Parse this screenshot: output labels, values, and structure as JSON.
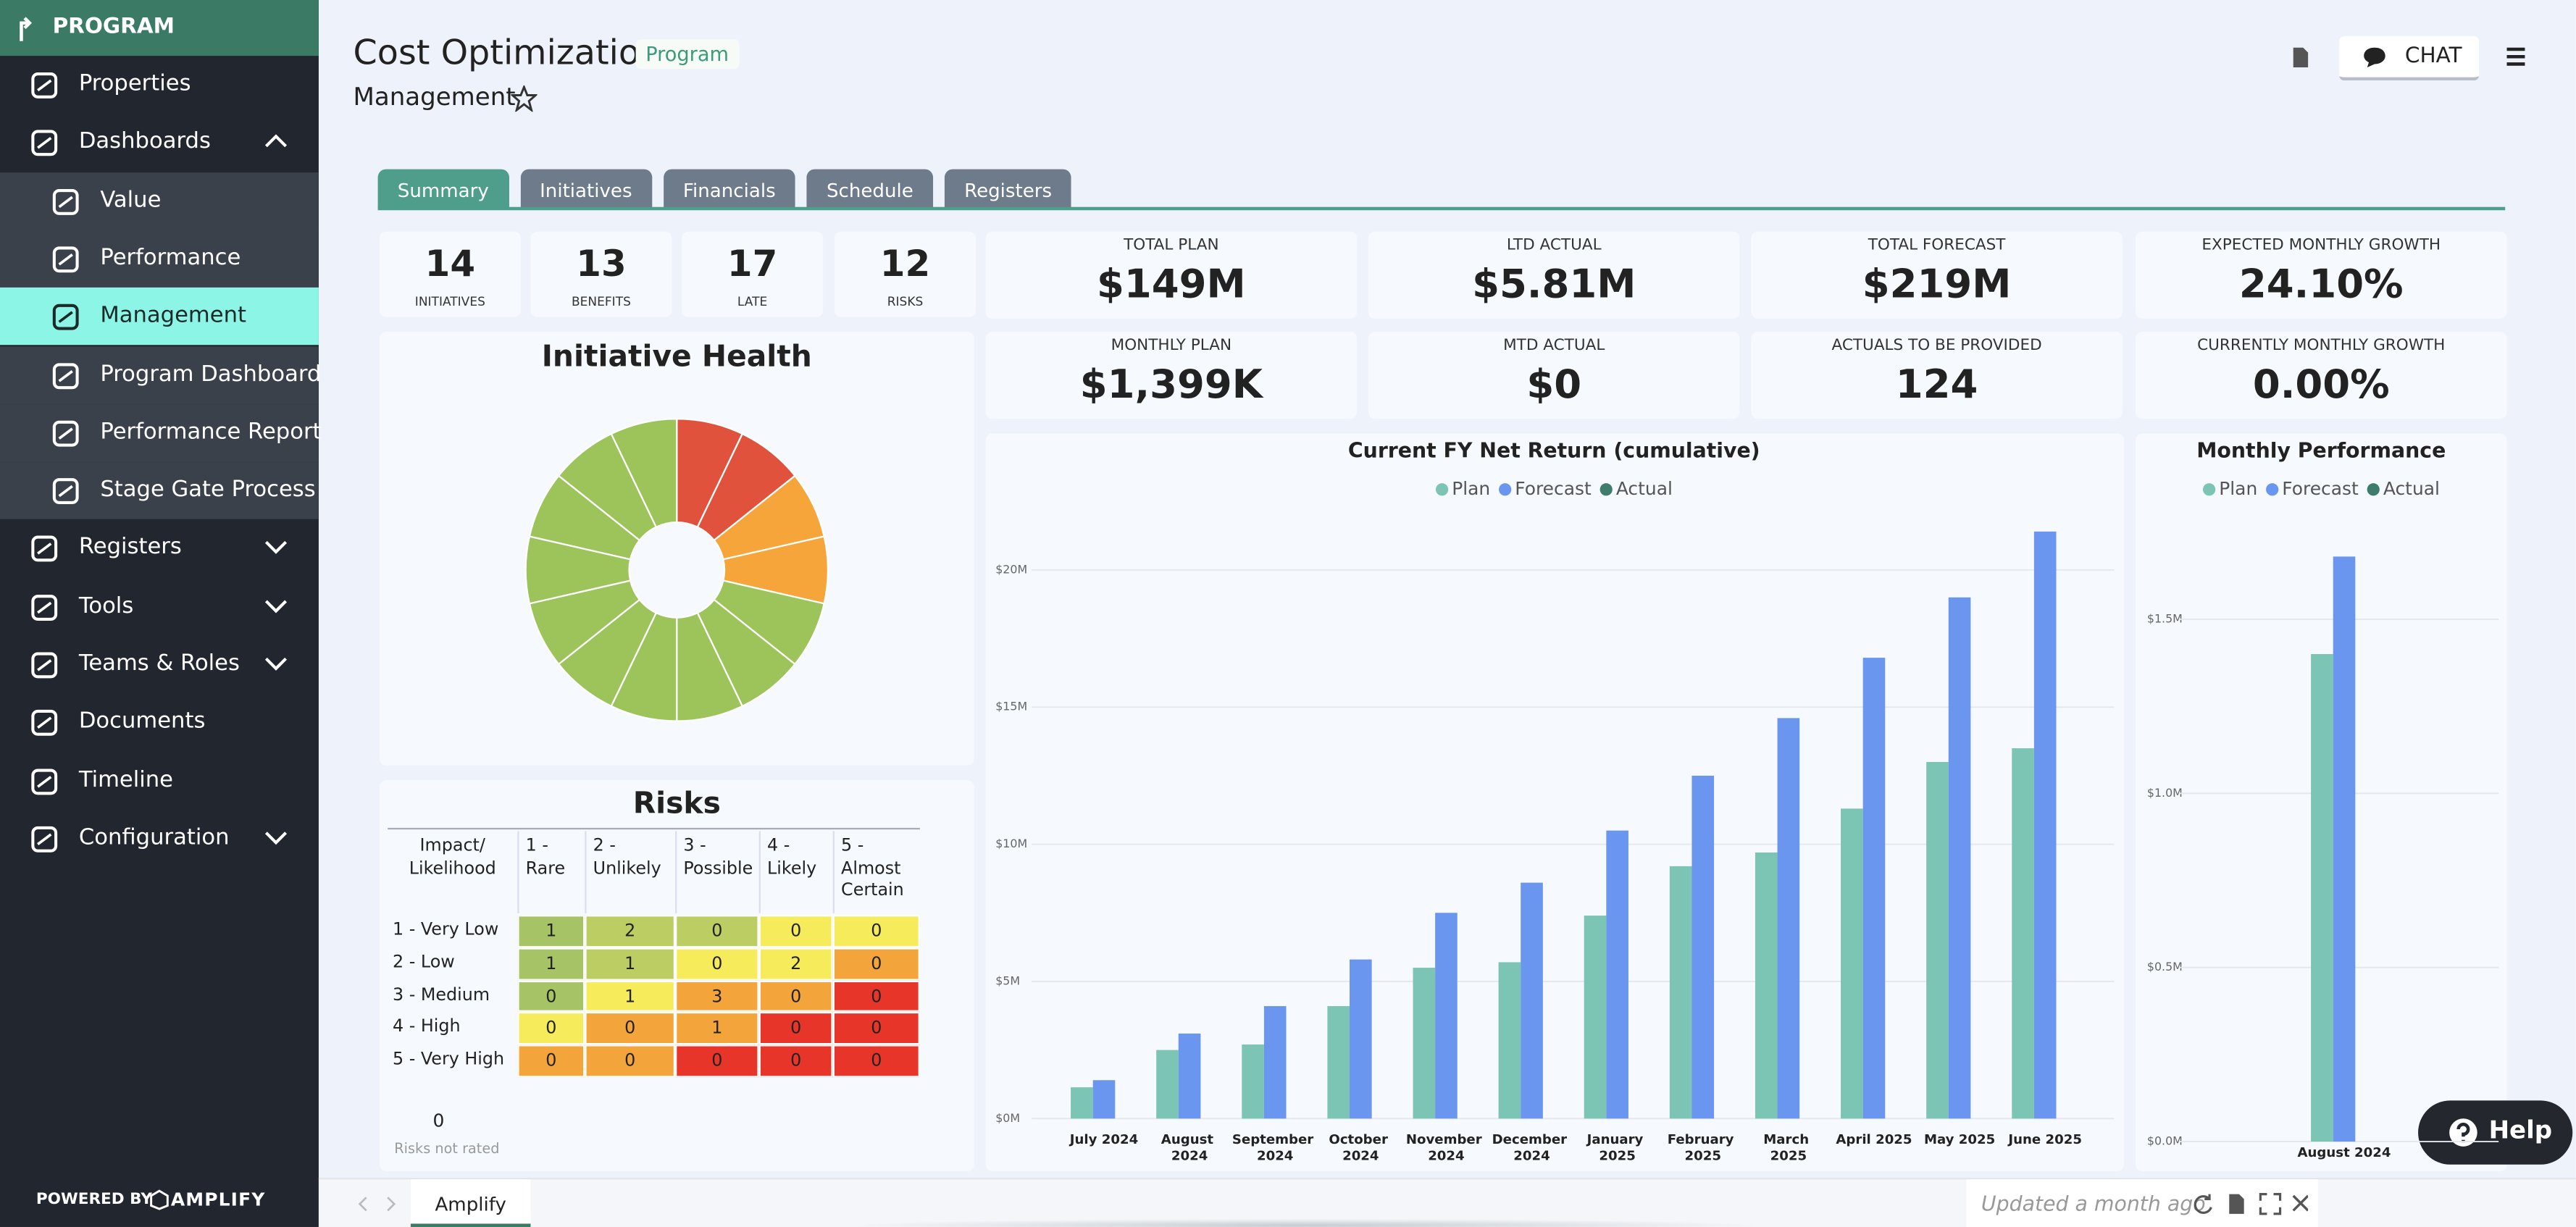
{
  "sidebar": {
    "header": "PROGRAM",
    "items": [
      {
        "label": "Properties"
      },
      {
        "label": "Dashboards",
        "children": [
          {
            "label": "Value"
          },
          {
            "label": "Performance"
          },
          {
            "label": "Management",
            "active": true
          },
          {
            "label": "Program Dashboard"
          },
          {
            "label": "Performance Report"
          },
          {
            "label": "Stage Gate Process"
          }
        ]
      },
      {
        "label": "Registers",
        "collapsed": true
      },
      {
        "label": "Tools",
        "collapsed": true
      },
      {
        "label": "Teams & Roles",
        "collapsed": true
      },
      {
        "label": "Documents"
      },
      {
        "label": "Timeline"
      },
      {
        "label": "Configuration",
        "collapsed": true
      }
    ],
    "powered_by": "POWERED BY",
    "brand": "AMPLIFY"
  },
  "header": {
    "title": "Cost Optimization",
    "badge": "Program",
    "subtitle": "Management",
    "chat": "CHAT"
  },
  "tabs": {
    "items": [
      "Summary",
      "Initiatives",
      "Financials",
      "Schedule",
      "Registers"
    ],
    "active": 0
  },
  "stats": [
    {
      "value": 14,
      "label": "INITIATIVES"
    },
    {
      "value": 13,
      "label": "BENEFITS"
    },
    {
      "value": 17,
      "label": "LATE"
    },
    {
      "value": 12,
      "label": "RISKS"
    }
  ],
  "kpis": [
    {
      "label": "TOTAL PLAN",
      "value": "$149M"
    },
    {
      "label": "LTD ACTUAL",
      "value": "$5.81M"
    },
    {
      "label": "TOTAL FORECAST",
      "value": "$219M"
    },
    {
      "label": "EXPECTED MONTHLY GROWTH",
      "value": "24.10%"
    },
    {
      "label": "MONTHLY PLAN",
      "value": "$1,399K"
    },
    {
      "label": "MTD ACTUAL",
      "value": "$0"
    },
    {
      "label": "ACTUALS TO BE PROVIDED",
      "value": 124
    },
    {
      "label": "CURRENTLY MONTHLY GROWTH",
      "value": "0.00%"
    }
  ],
  "risks": {
    "title": "Risks",
    "columns": [
      "Impact/ Likelihood",
      "1 - Rare",
      "2 - Unlikely",
      "3 - Possible",
      "4 - Likely",
      "5 - Almost Certain"
    ],
    "rows": [
      {
        "label": "1 - Very Low",
        "values": [
          1,
          2,
          0,
          0,
          0
        ],
        "colors": [
          "#a6c465",
          "#bccd63",
          "#bccd63",
          "#f6ec5b",
          "#f6ec5b"
        ]
      },
      {
        "label": "2 - Low",
        "values": [
          1,
          1,
          0,
          2,
          0
        ],
        "colors": [
          "#a6c465",
          "#bccd63",
          "#f6ec5b",
          "#f6ec5b",
          "#f3a43a"
        ]
      },
      {
        "label": "3 - Medium",
        "values": [
          0,
          1,
          3,
          0,
          0
        ],
        "colors": [
          "#a6c465",
          "#f6ec5b",
          "#f3a43a",
          "#f3a43a",
          "#e8352a"
        ]
      },
      {
        "label": "4 - High",
        "values": [
          0,
          0,
          1,
          0,
          0
        ],
        "colors": [
          "#f6ec5b",
          "#f3a43a",
          "#f3a43a",
          "#e8352a",
          "#e8352a"
        ]
      },
      {
        "label": "5 - Very High",
        "values": [
          0,
          0,
          0,
          0,
          0
        ],
        "colors": [
          "#f3a43a",
          "#f3a43a",
          "#e8352a",
          "#e8352a",
          "#e8352a"
        ]
      }
    ],
    "not_rated": {
      "value": 0,
      "label": "Risks not rated"
    }
  },
  "footer": {
    "tab": "Amplify",
    "status": "Updated a month ago"
  },
  "help": "Help",
  "chart_data": [
    {
      "type": "pie",
      "title": "Initiative Health",
      "values": [
        1,
        1,
        1,
        1,
        1,
        1,
        1,
        1,
        1,
        1,
        1,
        1,
        1,
        1
      ],
      "colors": [
        "#e0523c",
        "#e0523c",
        "#f5a53a",
        "#f5a53a",
        "#9cc45a",
        "#9cc45a",
        "#9cc45a",
        "#9cc45a",
        "#9cc45a",
        "#9cc45a",
        "#9cc45a",
        "#9cc45a",
        "#9cc45a",
        "#9cc45a"
      ]
    },
    {
      "type": "bar",
      "title": "Current FY Net Return (cumulative)",
      "categories": [
        "July 2024",
        "August 2024",
        "September 2024",
        "October 2024",
        "November 2024",
        "December 2024",
        "January 2025",
        "February 2025",
        "March 2025",
        "April 2025",
        "May 2025",
        "June 2025"
      ],
      "series": [
        {
          "name": "Plan",
          "color": "#7cc5b4",
          "values": [
            1140000,
            2500000,
            2700000,
            4100000,
            5500000,
            5700000,
            7400000,
            9200000,
            9700000,
            11300000,
            13000000,
            13500000
          ]
        },
        {
          "name": "Forecast",
          "color": "#6a96f0",
          "values": [
            1400000,
            3100000,
            4100000,
            5800000,
            7500000,
            8600000,
            10500000,
            12500000,
            14600000,
            16800000,
            19000000,
            21400000
          ]
        },
        {
          "name": "Actual",
          "color": "#3e7d6b",
          "values": [
            null,
            null,
            null,
            null,
            null,
            null,
            null,
            null,
            null,
            null,
            null,
            null
          ]
        }
      ],
      "ylim": [
        0,
        22000000
      ],
      "yticks": [
        {
          "value": 0,
          "label": "$0M"
        },
        {
          "value": 5000000,
          "label": "$5M"
        },
        {
          "value": 10000000,
          "label": "$10M"
        },
        {
          "value": 15000000,
          "label": "$15M"
        },
        {
          "value": 20000000,
          "label": "$20M"
        }
      ],
      "grid": true
    },
    {
      "type": "bar",
      "title": "Monthly Performance",
      "categories": [
        "August 2024"
      ],
      "series": [
        {
          "name": "Plan",
          "color": "#7cc5b4",
          "values": [
            1400000
          ]
        },
        {
          "name": "Forecast",
          "color": "#6a96f0",
          "values": [
            1680000
          ]
        },
        {
          "name": "Actual",
          "color": "#3e7d6b",
          "values": [
            null
          ]
        }
      ],
      "ylim": [
        0,
        1750000
      ],
      "yticks": [
        {
          "value": 0,
          "label": "$0.0M"
        },
        {
          "value": 500000,
          "label": "$0.5M"
        },
        {
          "value": 1000000,
          "label": "$1.0M"
        },
        {
          "value": 1500000,
          "label": "$1.5M"
        }
      ],
      "grid": true
    }
  ]
}
